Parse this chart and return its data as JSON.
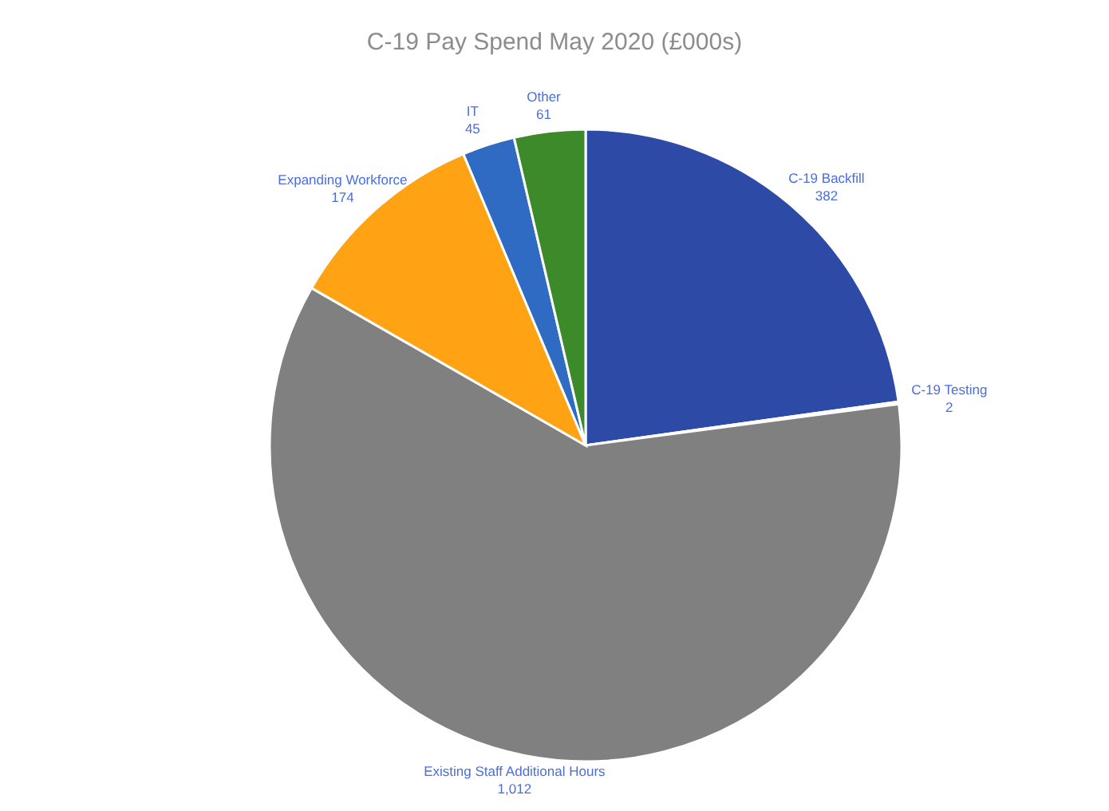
{
  "chart_data": {
    "type": "pie",
    "title": "C-19 Pay Spend May 2020 (£000s)",
    "categories": [
      "C-19 Backfill",
      "C-19 Testing",
      "Existing Staff Additional Hours",
      "Expanding Workforce",
      "IT",
      "Other"
    ],
    "values": [
      382,
      2,
      1012,
      174,
      45,
      61
    ],
    "colors": [
      "#2c4aa6",
      "#ed7d31",
      "#808080",
      "#ffa214",
      "#2f6bc2",
      "#3c8a2a"
    ],
    "value_labels": [
      "382",
      "2",
      "1,012",
      "174",
      "45",
      "61"
    ],
    "legend": false
  }
}
